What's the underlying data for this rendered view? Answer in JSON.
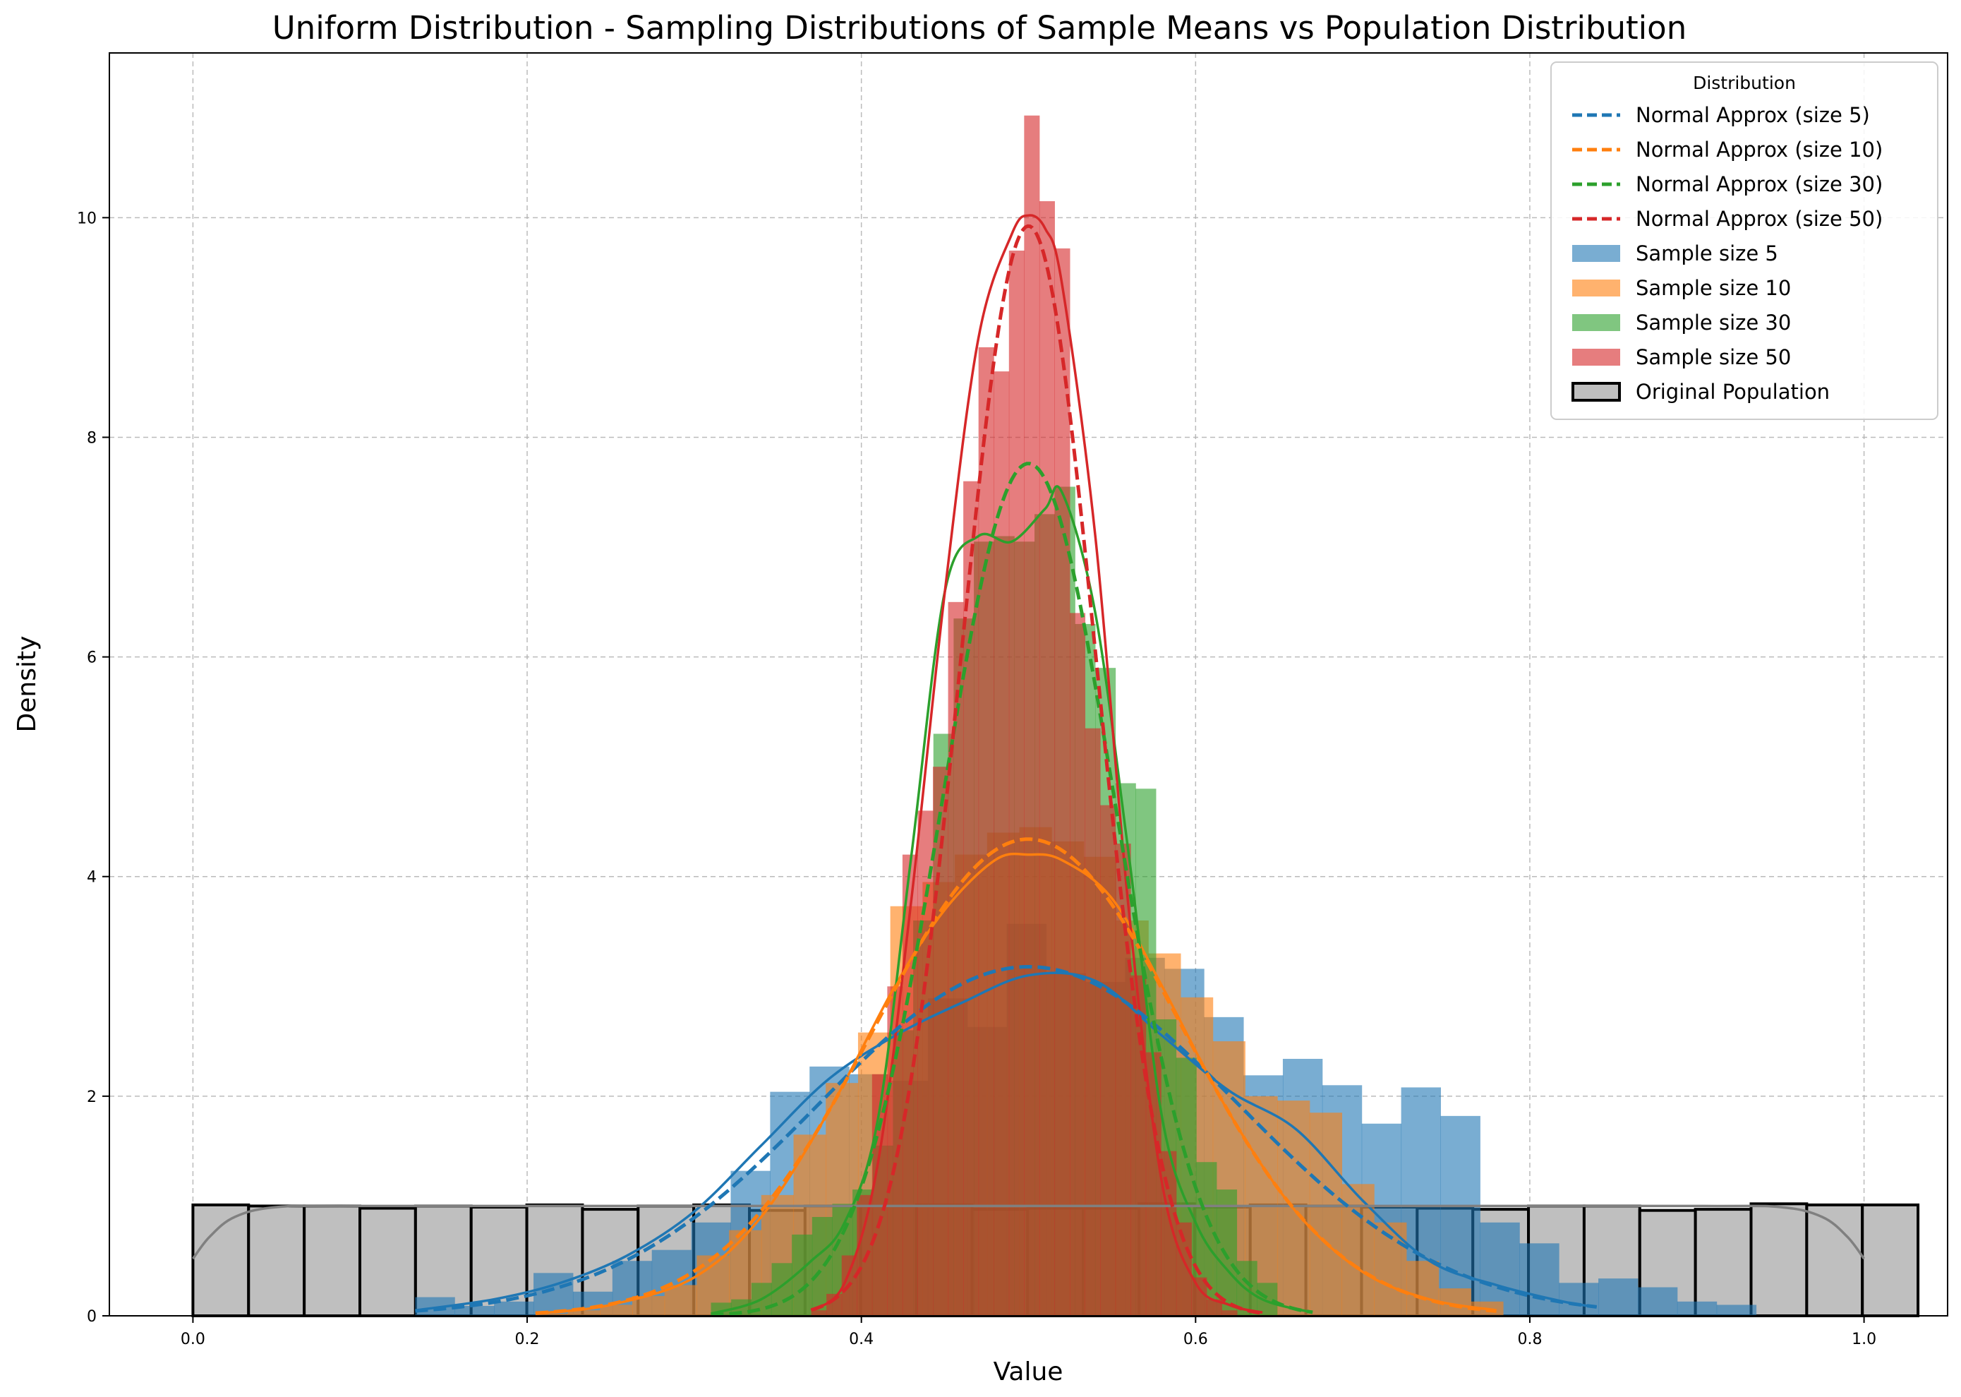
{
  "chart_data": {
    "type": "bar",
    "title": "Uniform Distribution - Sampling Distributions of Sample Means vs Population Distribution",
    "xlabel": "Value",
    "ylabel": "Density",
    "xlim": [
      -0.05,
      1.05
    ],
    "ylim": [
      0,
      11.5
    ],
    "x_ticks": [
      0.0,
      0.2,
      0.4,
      0.6,
      0.8,
      1.0
    ],
    "x_tick_labels": [
      "0.0",
      "0.2",
      "0.4",
      "0.6",
      "0.8",
      "1.0"
    ],
    "y_ticks": [
      0,
      2,
      4,
      6,
      8,
      10
    ],
    "y_tick_labels": [
      "0",
      "2",
      "4",
      "6",
      "8",
      "10"
    ],
    "grid": true,
    "legend": {
      "title": "Distribution",
      "placement": "top-right",
      "entries": [
        "Normal Approx (size 5)",
        "Normal Approx (size 10)",
        "Normal Approx (size 30)",
        "Normal Approx (size 50)",
        "Sample size 5",
        "Sample size 10",
        "Sample size 30",
        "Sample size 50",
        "Original Population"
      ]
    },
    "population": {
      "name": "Original Population",
      "color": "#bfbfbf",
      "edge_color": "#000000",
      "bin_start": 0.0,
      "bin_width": 0.0333,
      "values": [
        1.01,
        1.0,
        1.0,
        0.98,
        1.0,
        0.99,
        1.01,
        0.97,
        1.0,
        1.01,
        0.96,
        1.0,
        1.0,
        1.01,
        0.97,
        0.98,
        0.98,
        1.02,
        0.99,
        1.01,
        1.0,
        0.99,
        0.98,
        0.97,
        1.0,
        1.0,
        0.96,
        0.97,
        1.02,
        1.01,
        1.01
      ]
    },
    "series": [
      {
        "name": "Sample size 5",
        "color": "#1f77b4",
        "bin_start": 0.133,
        "bin_width": 0.0236,
        "values": [
          0.17,
          0.09,
          0.13,
          0.39,
          0.22,
          0.5,
          0.6,
          0.85,
          1.32,
          2.04,
          2.27,
          2.2,
          2.14,
          2.89,
          2.63,
          3.57,
          3.12,
          3.04,
          3.26,
          3.16,
          2.72,
          2.19,
          2.34,
          2.1,
          1.75,
          2.08,
          1.82,
          0.85,
          0.66,
          0.3,
          0.34,
          0.26,
          0.13,
          0.1
        ]
      },
      {
        "name": "Sample size 10",
        "color": "#ff7f0e",
        "bin_start": 0.205,
        "bin_width": 0.0193,
        "values": [
          0.02,
          0.05,
          0.1,
          0.18,
          0.28,
          0.55,
          0.78,
          1.1,
          1.65,
          2.12,
          2.58,
          3.73,
          3.95,
          4.2,
          4.4,
          4.45,
          4.32,
          4.18,
          3.6,
          3.3,
          2.9,
          2.5,
          2.0,
          1.96,
          1.85,
          1.2,
          0.85,
          0.5,
          0.25,
          0.13
        ]
      },
      {
        "name": "Sample size 30",
        "color": "#2ca02c",
        "bin_start": 0.31,
        "bin_width": 0.0121,
        "values": [
          0.12,
          0.15,
          0.3,
          0.48,
          0.74,
          0.9,
          1.02,
          1.15,
          1.55,
          2.6,
          3.6,
          5.3,
          6.35,
          7.05,
          7.1,
          7.05,
          7.3,
          7.55,
          6.3,
          5.9,
          4.85,
          4.8,
          2.7,
          2.35,
          1.4,
          1.15,
          0.5,
          0.3
        ]
      },
      {
        "name": "Sample size 50",
        "color": "#d62728",
        "bin_start": 0.37,
        "bin_width": 0.0091,
        "values": [
          0.05,
          0.2,
          0.55,
          1.1,
          2.2,
          3.0,
          4.2,
          4.6,
          5.0,
          6.5,
          7.6,
          8.82,
          8.6,
          9.7,
          10.93,
          10.15,
          9.72,
          6.4,
          5.35,
          4.65,
          4.3,
          3.1,
          2.4,
          1.5,
          0.85,
          0.35,
          0.15,
          0.05
        ]
      }
    ],
    "normal_approx": [
      {
        "name": "Normal Approx (size 5)",
        "color": "#1f77b4",
        "mean": 0.5,
        "std": 0.1255,
        "x_range": [
          0.133,
          0.84
        ]
      },
      {
        "name": "Normal Approx (size 10)",
        "color": "#ff7f0e",
        "mean": 0.5,
        "std": 0.0919,
        "x_range": [
          0.205,
          0.78
        ]
      },
      {
        "name": "Normal Approx (size 30)",
        "color": "#2ca02c",
        "mean": 0.5,
        "std": 0.0514,
        "x_range": [
          0.31,
          0.67
        ]
      },
      {
        "name": "Normal Approx (size 50)",
        "color": "#d62728",
        "mean": 0.5,
        "std": 0.0402,
        "x_range": [
          0.37,
          0.64
        ]
      }
    ],
    "kde": [
      {
        "name": "Sample size 5",
        "color": "#1f77b4",
        "x": [
          0.133,
          0.18,
          0.22,
          0.26,
          0.3,
          0.34,
          0.38,
          0.42,
          0.46,
          0.5,
          0.54,
          0.58,
          0.62,
          0.66,
          0.7,
          0.74,
          0.78,
          0.82,
          0.84
        ],
        "y": [
          0.05,
          0.15,
          0.3,
          0.55,
          0.95,
          1.55,
          2.15,
          2.55,
          2.85,
          3.1,
          3.05,
          2.55,
          2.05,
          1.7,
          1.05,
          0.5,
          0.28,
          0.13,
          0.08
        ]
      },
      {
        "name": "Sample size 10",
        "color": "#ff7f0e",
        "x": [
          0.205,
          0.25,
          0.3,
          0.34,
          0.38,
          0.42,
          0.45,
          0.48,
          0.5,
          0.52,
          0.55,
          0.58,
          0.62,
          0.66,
          0.7,
          0.74,
          0.78
        ],
        "y": [
          0.02,
          0.1,
          0.35,
          0.9,
          1.85,
          3.0,
          3.7,
          4.15,
          4.2,
          4.15,
          3.8,
          3.0,
          1.85,
          0.95,
          0.4,
          0.15,
          0.05
        ]
      },
      {
        "name": "Sample size 30",
        "color": "#2ca02c",
        "x": [
          0.31,
          0.34,
          0.37,
          0.39,
          0.41,
          0.43,
          0.45,
          0.47,
          0.49,
          0.51,
          0.52,
          0.54,
          0.56,
          0.58,
          0.6,
          0.62,
          0.64,
          0.67
        ],
        "y": [
          0.02,
          0.15,
          0.5,
          0.85,
          1.8,
          4.2,
          6.6,
          7.1,
          7.05,
          7.35,
          7.5,
          6.4,
          4.2,
          1.8,
          0.85,
          0.4,
          0.15,
          0.03
        ]
      },
      {
        "name": "Sample size 50",
        "color": "#d62728",
        "x": [
          0.37,
          0.39,
          0.41,
          0.43,
          0.45,
          0.47,
          0.49,
          0.5,
          0.51,
          0.52,
          0.54,
          0.56,
          0.58,
          0.6,
          0.62,
          0.64
        ],
        "y": [
          0.05,
          0.3,
          1.4,
          3.8,
          6.6,
          8.9,
          9.85,
          10.02,
          9.9,
          9.4,
          7.1,
          3.7,
          1.2,
          0.3,
          0.1,
          0.03
        ]
      },
      {
        "name": "Original Population",
        "color": "#808080",
        "x": [
          0.0,
          0.01,
          0.025,
          0.05,
          0.1,
          0.3,
          0.5,
          0.7,
          0.9,
          0.95,
          0.975,
          0.99,
          1.0
        ],
        "y": [
          0.52,
          0.72,
          0.9,
          0.99,
          1.0,
          1.0,
          1.0,
          1.0,
          1.0,
          0.99,
          0.9,
          0.72,
          0.52
        ]
      }
    ]
  }
}
